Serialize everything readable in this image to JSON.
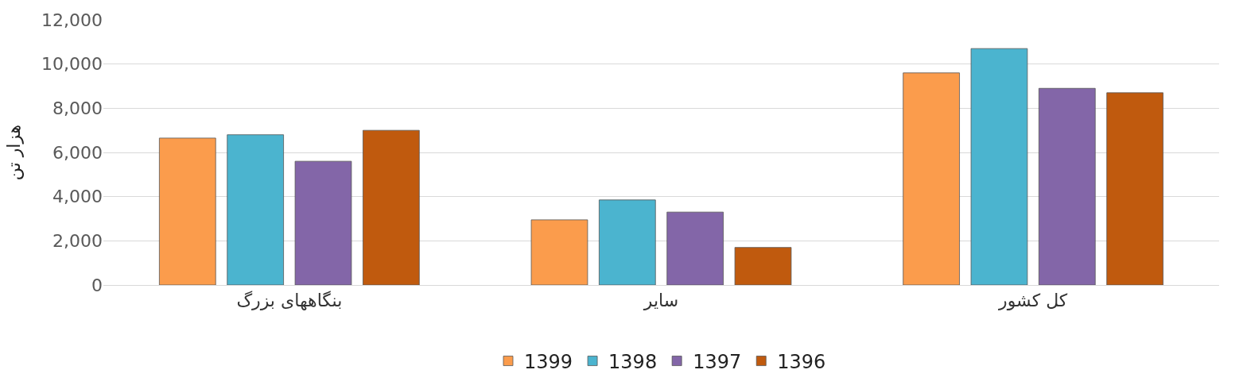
{
  "chart_data": {
    "type": "bar",
    "ylabel": "هزار تن",
    "categories": [
      "بنگاههای بزرگ",
      "سایر",
      "کل کشور"
    ],
    "series": [
      {
        "name": "1399",
        "color": "#fb9c4c",
        "values": [
          6650,
          2950,
          9600
        ]
      },
      {
        "name": "1398",
        "color": "#4bb4cf",
        "values": [
          6800,
          3850,
          10700
        ]
      },
      {
        "name": "1397",
        "color": "#8366a8",
        "values": [
          5600,
          3300,
          8900
        ]
      },
      {
        "name": "1396",
        "color": "#c05a0e",
        "values": [
          7000,
          1700,
          8700
        ]
      }
    ],
    "ylim": [
      0,
      12000
    ],
    "yticks": [
      {
        "value": 0,
        "label": "0"
      },
      {
        "value": 2000,
        "label": "2,000"
      },
      {
        "value": 4000,
        "label": "4,000"
      },
      {
        "value": 6000,
        "label": "6,000"
      },
      {
        "value": 8000,
        "label": "8,000"
      },
      {
        "value": 10000,
        "label": "10,000"
      },
      {
        "value": 12000,
        "label": "12,000"
      }
    ],
    "grid": "y",
    "legend": "bottom"
  }
}
